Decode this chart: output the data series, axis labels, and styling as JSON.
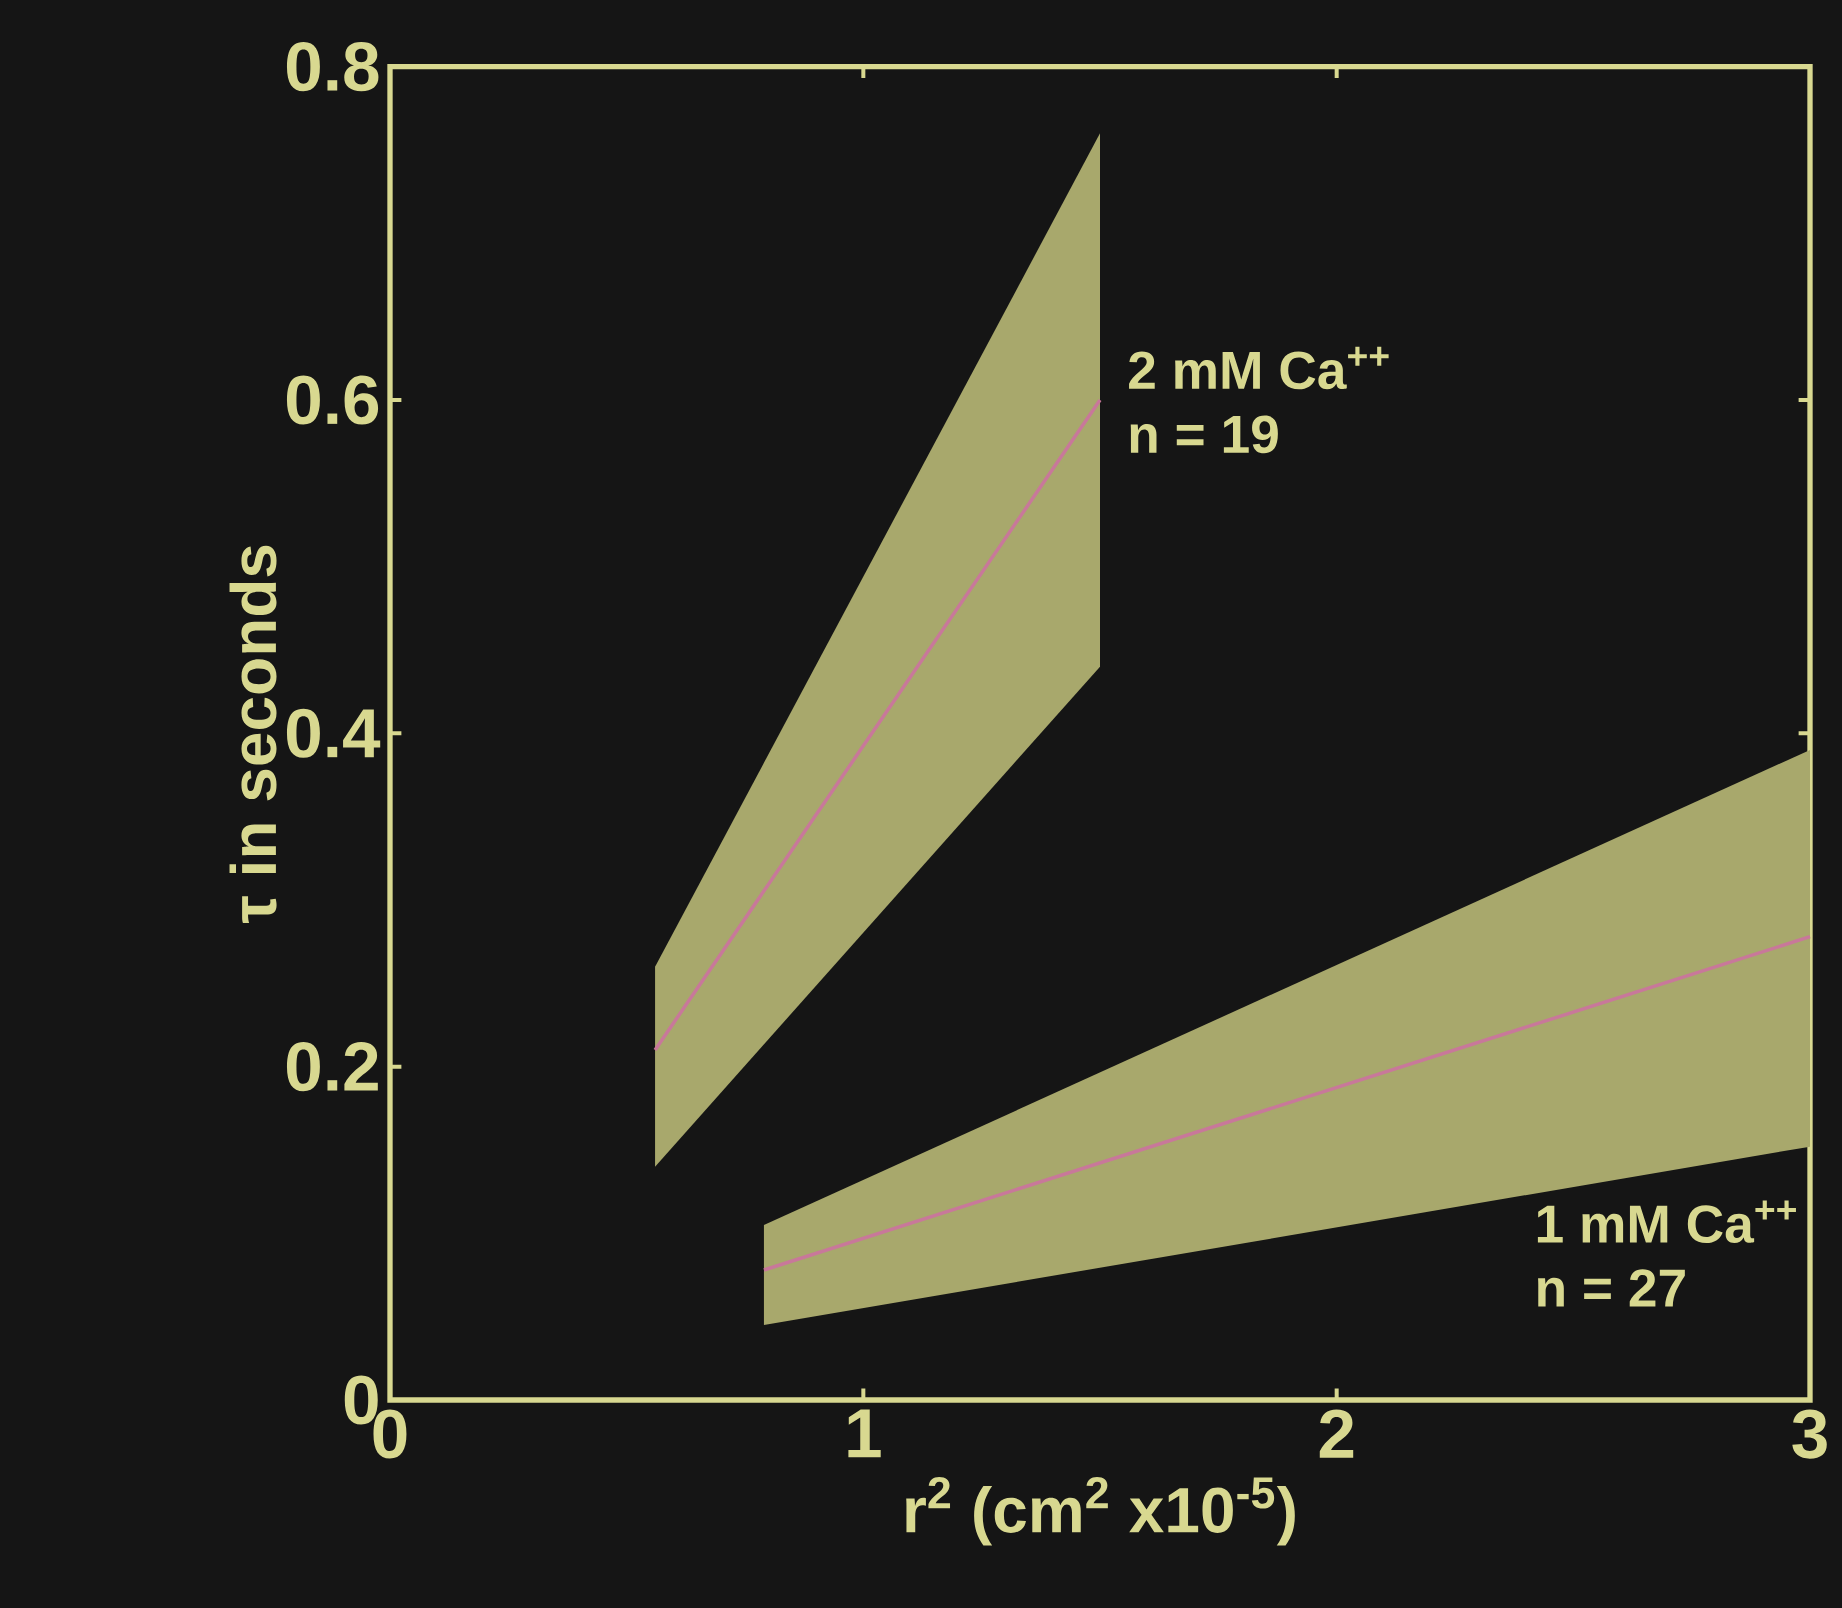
{
  "chart_data": {
    "type": "line",
    "xlabel": "r$^{2}$ (cm$^{2}$ x10$^{-5}$)",
    "ylabel": "τ in seconds",
    "xlim": [
      0,
      3
    ],
    "ylim": [
      0,
      0.8
    ],
    "xticks": [
      0,
      1,
      2,
      3
    ],
    "yticks": [
      0,
      0.2,
      0.4,
      0.6,
      0.8
    ],
    "grid": false,
    "marker": "none",
    "line_style": "solid",
    "series": [
      {
        "x": [
          0.56,
          1.5
        ],
        "values": [
          0.21,
          0.6
        ],
        "lower": [
          0.14,
          0.44
        ],
        "upper": [
          0.26,
          0.76
        ],
        "color": "#c8789a"
      },
      {
        "x": [
          0.79,
          3
        ],
        "values": [
          0.078,
          0.278
        ],
        "lower": [
          0.045,
          0.152
        ],
        "upper": [
          0.105,
          0.39
        ],
        "color": "#c8789a"
      }
    ],
    "annotations": [
      "2 mM Ca$^{++}$",
      "n = 19",
      "1 mM Ca$^{++}$",
      "n = 27"
    ]
  }
}
